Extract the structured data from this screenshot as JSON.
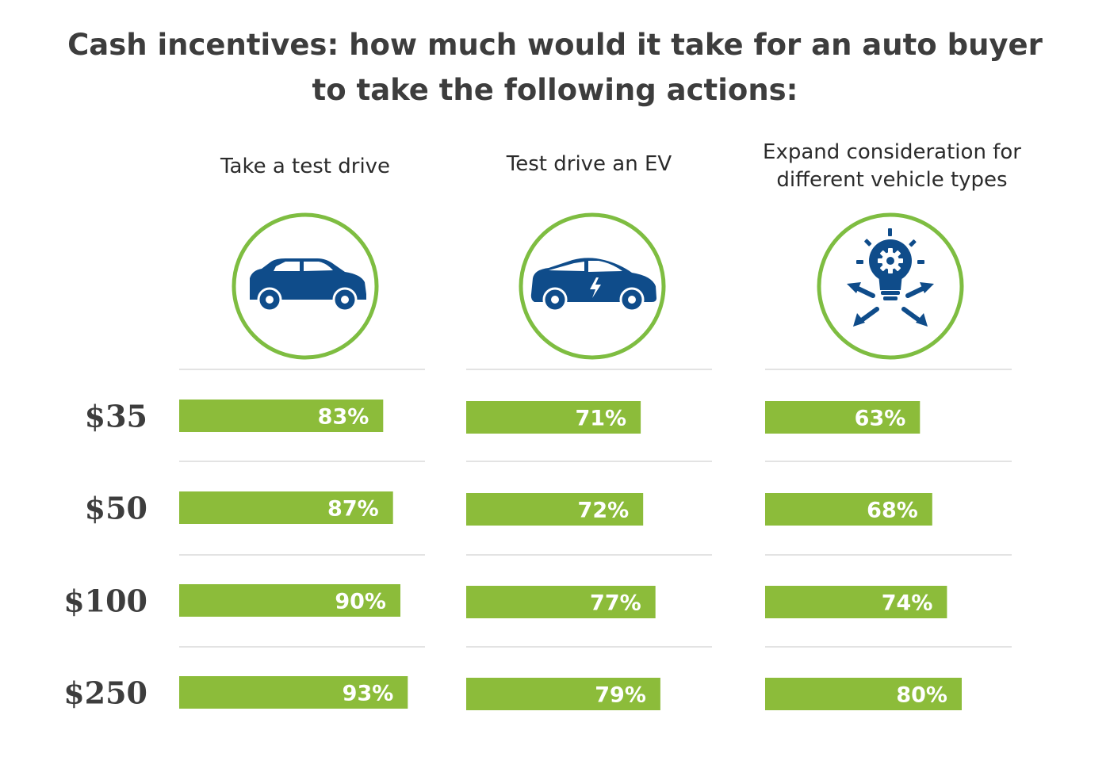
{
  "title": {
    "line1": "Cash incentives: how much would it take for an auto buyer",
    "line2": "to take the following actions:"
  },
  "colors": {
    "bar": "#8cbc3a",
    "icon_ring": "#7ebd41",
    "icon_fill": "#0f4c8a",
    "divider": "#e3e3e3",
    "label_text": "#3d3d3d"
  },
  "columns": [
    {
      "title_lines": [
        "Take a test drive"
      ],
      "icon": "car-icon"
    },
    {
      "title_lines": [
        "Test drive an EV"
      ],
      "icon": "electric-car-icon"
    },
    {
      "title_lines": [
        "Expand consideration for",
        "different vehicle types"
      ],
      "icon": "lightbulb-gear-arrows-icon"
    }
  ],
  "chart_data": {
    "type": "bar",
    "orientation": "horizontal",
    "title": "Cash incentives: how much would it take for an auto buyer to take the following actions:",
    "categories": [
      "$35",
      "$50",
      "$100",
      "$250"
    ],
    "series": [
      {
        "name": "Take a test drive",
        "values": [
          83,
          87,
          90,
          93
        ]
      },
      {
        "name": "Test drive an EV",
        "values": [
          71,
          72,
          77,
          79
        ]
      },
      {
        "name": "Expand consideration for different vehicle types",
        "values": [
          63,
          68,
          74,
          80
        ]
      }
    ],
    "value_suffix": "%",
    "xlim": [
      0,
      100
    ],
    "legend": "none",
    "grid": false
  }
}
